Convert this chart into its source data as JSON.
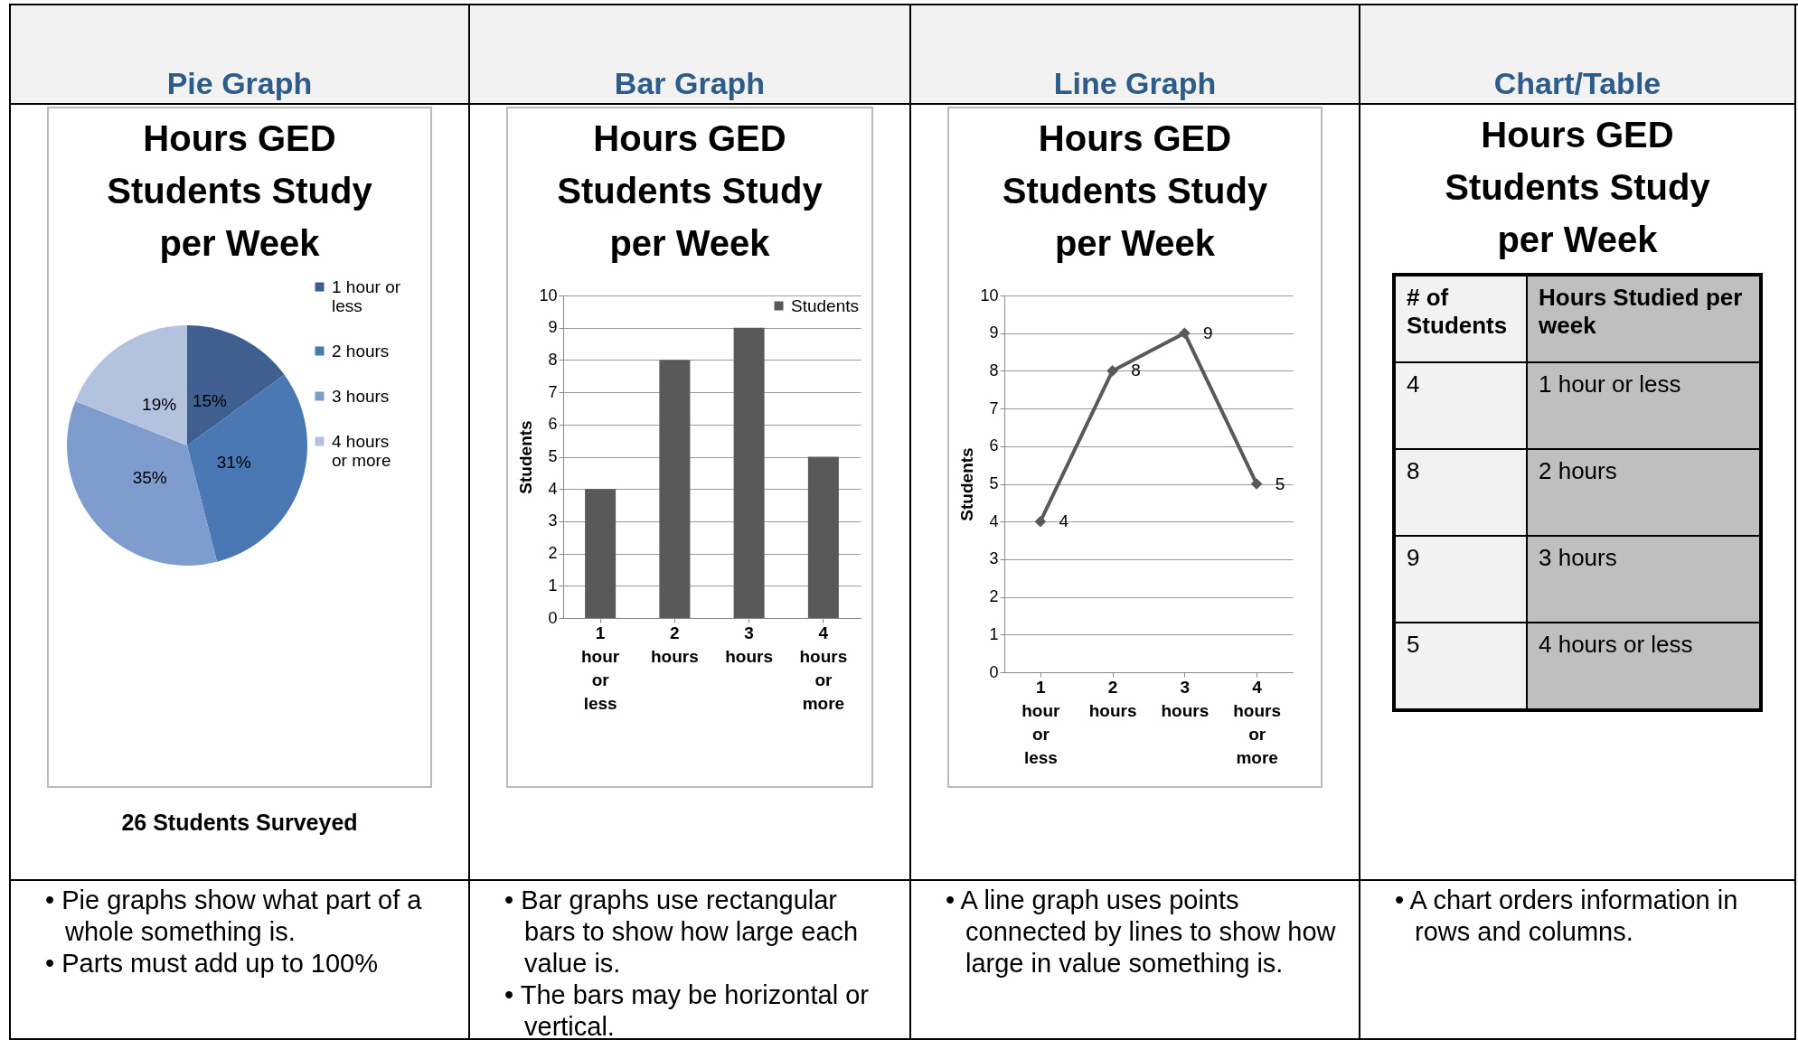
{
  "chart_data": [
    {
      "type": "pie",
      "subtitle": "Pie Graph",
      "title": "Hours GED Students Study per Week",
      "categories": [
        "1 hour or less",
        "2 hours",
        "3 hours",
        "4 hours or more"
      ],
      "values": [
        15,
        31,
        35,
        19
      ],
      "colors": [
        "#3e5f8f",
        "#4a78b4",
        "#7f9cce",
        "#b3c2df"
      ],
      "value_labels": [
        "15%",
        "31%",
        "35%",
        "19%"
      ],
      "legend": "right",
      "annotations": [
        "26 Students Surveyed",
        "• Pie graphs show what part of a whole something is.",
        "• Parts must add up to 100%"
      ]
    },
    {
      "type": "bar",
      "subtitle": "Bar Graph",
      "title": "Hours GED Students Study per Week",
      "categories": [
        "1 hour or less",
        "2 hours",
        "3 hours",
        "4 hours or more"
      ],
      "series": [
        {
          "name": "Students",
          "color": "#595959",
          "values": [
            4,
            8,
            9,
            5
          ]
        }
      ],
      "ylabel": "Students",
      "ylim": [
        0,
        10
      ],
      "yticks": [
        0,
        1,
        2,
        3,
        4,
        5,
        6,
        7,
        8,
        9,
        10
      ],
      "grid": "y",
      "legend": "top right",
      "annotations": [
        "• Bar graphs use rectangular bars to show how large each value is.",
        "• The bars may be horizontal or vertical."
      ]
    },
    {
      "type": "line",
      "subtitle": "Line Graph",
      "title": "Hours GED Students Study per Week",
      "categories": [
        "1 hour or less",
        "2 hours",
        "3 hours",
        "4 hours or more"
      ],
      "series": [
        {
          "color": "#595959",
          "values": [
            4,
            8,
            9,
            5
          ]
        }
      ],
      "ylabel": "Students",
      "ylim": [
        0,
        10
      ],
      "yticks": [
        0,
        1,
        2,
        3,
        4,
        5,
        6,
        7,
        8,
        9,
        10
      ],
      "grid": "y",
      "marker": "diamond",
      "data_labels": true,
      "annotations": [
        "• A line graph uses points connected by lines to show how large in value something is."
      ]
    },
    {
      "type": "other",
      "subtitle": "Chart/Table",
      "title": "Hours GED Students Study per Week",
      "ylabel": "# of Students",
      "xlabel": "Hours Studied per week",
      "values": [
        4,
        8,
        9,
        5
      ],
      "categories": [
        "1 hour or less",
        "2 hours",
        "3 hours",
        "4 hours or less"
      ],
      "data_labels": true,
      "annotations": [
        "• A chart orders information in rows and columns."
      ]
    }
  ]
}
